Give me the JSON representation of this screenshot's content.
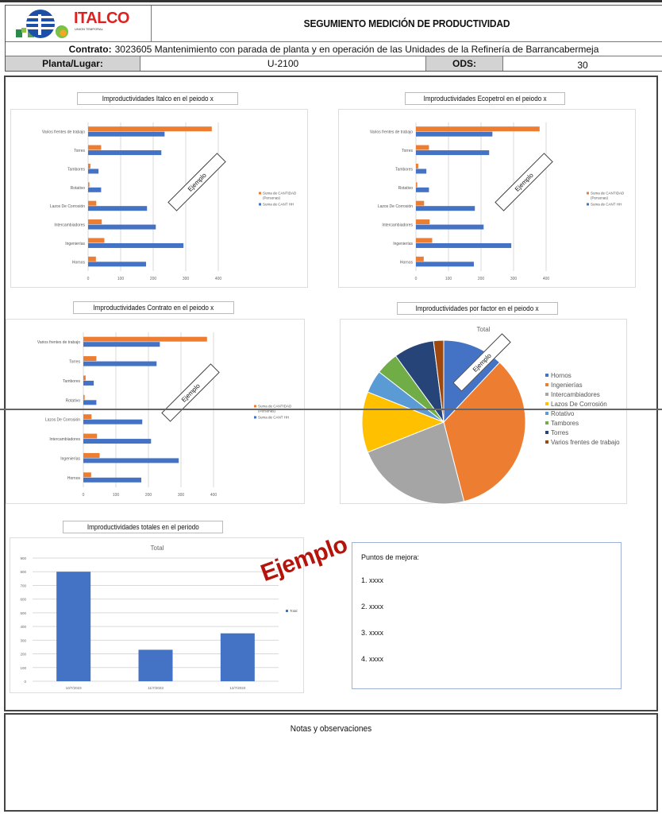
{
  "header": {
    "logo": {
      "name": "ITALCO",
      "subtitle": "UNION TEMPORAL"
    },
    "title": "SEGUMIENTO MEDICIÓN DE PRODUCTIVIDAD",
    "contract_label": "Contrato:",
    "contract_value": "3023605 Mantenimiento con parada de planta y en operación de las Unidades de la Refinería de Barrancabermeja",
    "planta_label": "Planta/Lugar:",
    "planta_value": "U-2100",
    "ods_label": "ODS:",
    "ods_value": "30"
  },
  "sections": {
    "italco_title": "Improductividades Italco en el peiodo x",
    "ecopetrol_title": "Improductividades Ecopetrol en el peiodo x",
    "contrato_title": "Improductividades Contrato  en el peiodo x",
    "factor_title": "Improductividades por factor en el peiodo x",
    "totales_title": "Improductividades totales en el periodo",
    "stamp_small": "Ejemplo",
    "stamp_big": "Ejemplo"
  },
  "mejora": {
    "title": "Puntos de mejora:",
    "items": [
      "1. xxxx",
      "2. xxxx",
      "3. xxxx",
      "4. xxxx"
    ]
  },
  "notes": {
    "title": "Notas y observaciones"
  },
  "colors": {
    "orange": "#ED7D31",
    "blue": "#4472C4",
    "stamp_red": "#B5140C"
  },
  "chart_data": [
    {
      "id": "italco",
      "type": "bar",
      "orientation": "horizontal",
      "title": "Improductividades Italco en el peiodo x",
      "categories": [
        "Varios frentes de trabajo",
        "Torres",
        "Tambores",
        "Rotativo",
        "Lazos De Corrosión",
        "Intercambiadores",
        "Ingenierías",
        "Hornos"
      ],
      "series": [
        {
          "name": "Suma de CANTIDAD (Personas)",
          "color": "#ED7D31",
          "values": [
            380,
            40,
            7,
            4,
            25,
            42,
            50,
            24
          ]
        },
        {
          "name": "Suma de CANT HH",
          "color": "#4472C4",
          "values": [
            235,
            225,
            32,
            40,
            181,
            208,
            293,
            178
          ]
        }
      ],
      "xticks": [
        0,
        100,
        200,
        300,
        400
      ],
      "xlim": [
        0,
        400
      ],
      "grid": true,
      "legend_position": "right"
    },
    {
      "id": "ecopetrol",
      "type": "bar",
      "orientation": "horizontal",
      "title": "Improductividades Ecopetrol en el peiodo x",
      "categories": [
        "Varios frentes de trabajo",
        "Torres",
        "Tambores",
        "Rotativo",
        "Lazos De Corrosión",
        "Intercambiadores",
        "Ingenierías",
        "Hornos"
      ],
      "series": [
        {
          "name": "Suma de CANTIDAD (Personas)",
          "color": "#ED7D31",
          "values": [
            380,
            40,
            7,
            4,
            25,
            42,
            50,
            24
          ]
        },
        {
          "name": "Suma de CANT HH",
          "color": "#4472C4",
          "values": [
            235,
            225,
            32,
            40,
            181,
            208,
            293,
            178
          ]
        }
      ],
      "xticks": [
        0,
        100,
        200,
        300,
        400
      ],
      "xlim": [
        0,
        400
      ],
      "grid": true,
      "legend_position": "right"
    },
    {
      "id": "contrato",
      "type": "bar",
      "orientation": "horizontal",
      "title": "Improductividades Contrato  en el peiodo x",
      "categories": [
        "Varios frentes de trabajo",
        "Torres",
        "Tambores",
        "Rotativo",
        "Lazos De Corrosión",
        "Intercambiadores",
        "Ingenierías",
        "Hornos"
      ],
      "series": [
        {
          "name": "Suma de CANTIDAD (Personas)",
          "color": "#ED7D31",
          "values": [
            380,
            40,
            7,
            4,
            25,
            42,
            50,
            24
          ]
        },
        {
          "name": "Suma de CANT HH",
          "color": "#4472C4",
          "values": [
            235,
            225,
            32,
            40,
            181,
            208,
            293,
            178
          ]
        }
      ],
      "xticks": [
        0,
        100,
        200,
        300,
        400
      ],
      "xlim": [
        0,
        400
      ],
      "grid": true,
      "legend_position": "right"
    },
    {
      "id": "factor",
      "type": "pie",
      "title": "Improductividades por factor en el peiodo x",
      "subtitle": "Total",
      "categories": [
        "Hornos",
        "Ingenierías",
        "Intercambiadores",
        "Lazos De Corrosión",
        "Rotativo",
        "Tambores",
        "Torres",
        "Varios frentes de trabajo"
      ],
      "values": [
        12,
        34,
        23,
        12,
        4.5,
        4.5,
        8,
        2
      ],
      "colors": [
        "#4472C4",
        "#ED7D31",
        "#A5A5A5",
        "#FFC000",
        "#5B9BD5",
        "#70AD47",
        "#264478",
        "#9E480E"
      ],
      "legend_position": "right"
    },
    {
      "id": "totales",
      "type": "bar",
      "title": "Improductividades totales en el periodo",
      "subtitle": "Total",
      "categories": [
        "10/7/2023",
        "11/7/2023",
        "12/7/2023"
      ],
      "series": [
        {
          "name": "Total",
          "color": "#4472C4",
          "values": [
            800,
            230,
            350
          ]
        }
      ],
      "yticks": [
        0,
        100,
        200,
        300,
        400,
        500,
        600,
        700,
        800,
        900
      ],
      "ylim": [
        0,
        900
      ],
      "grid": true,
      "legend_position": "right"
    }
  ]
}
